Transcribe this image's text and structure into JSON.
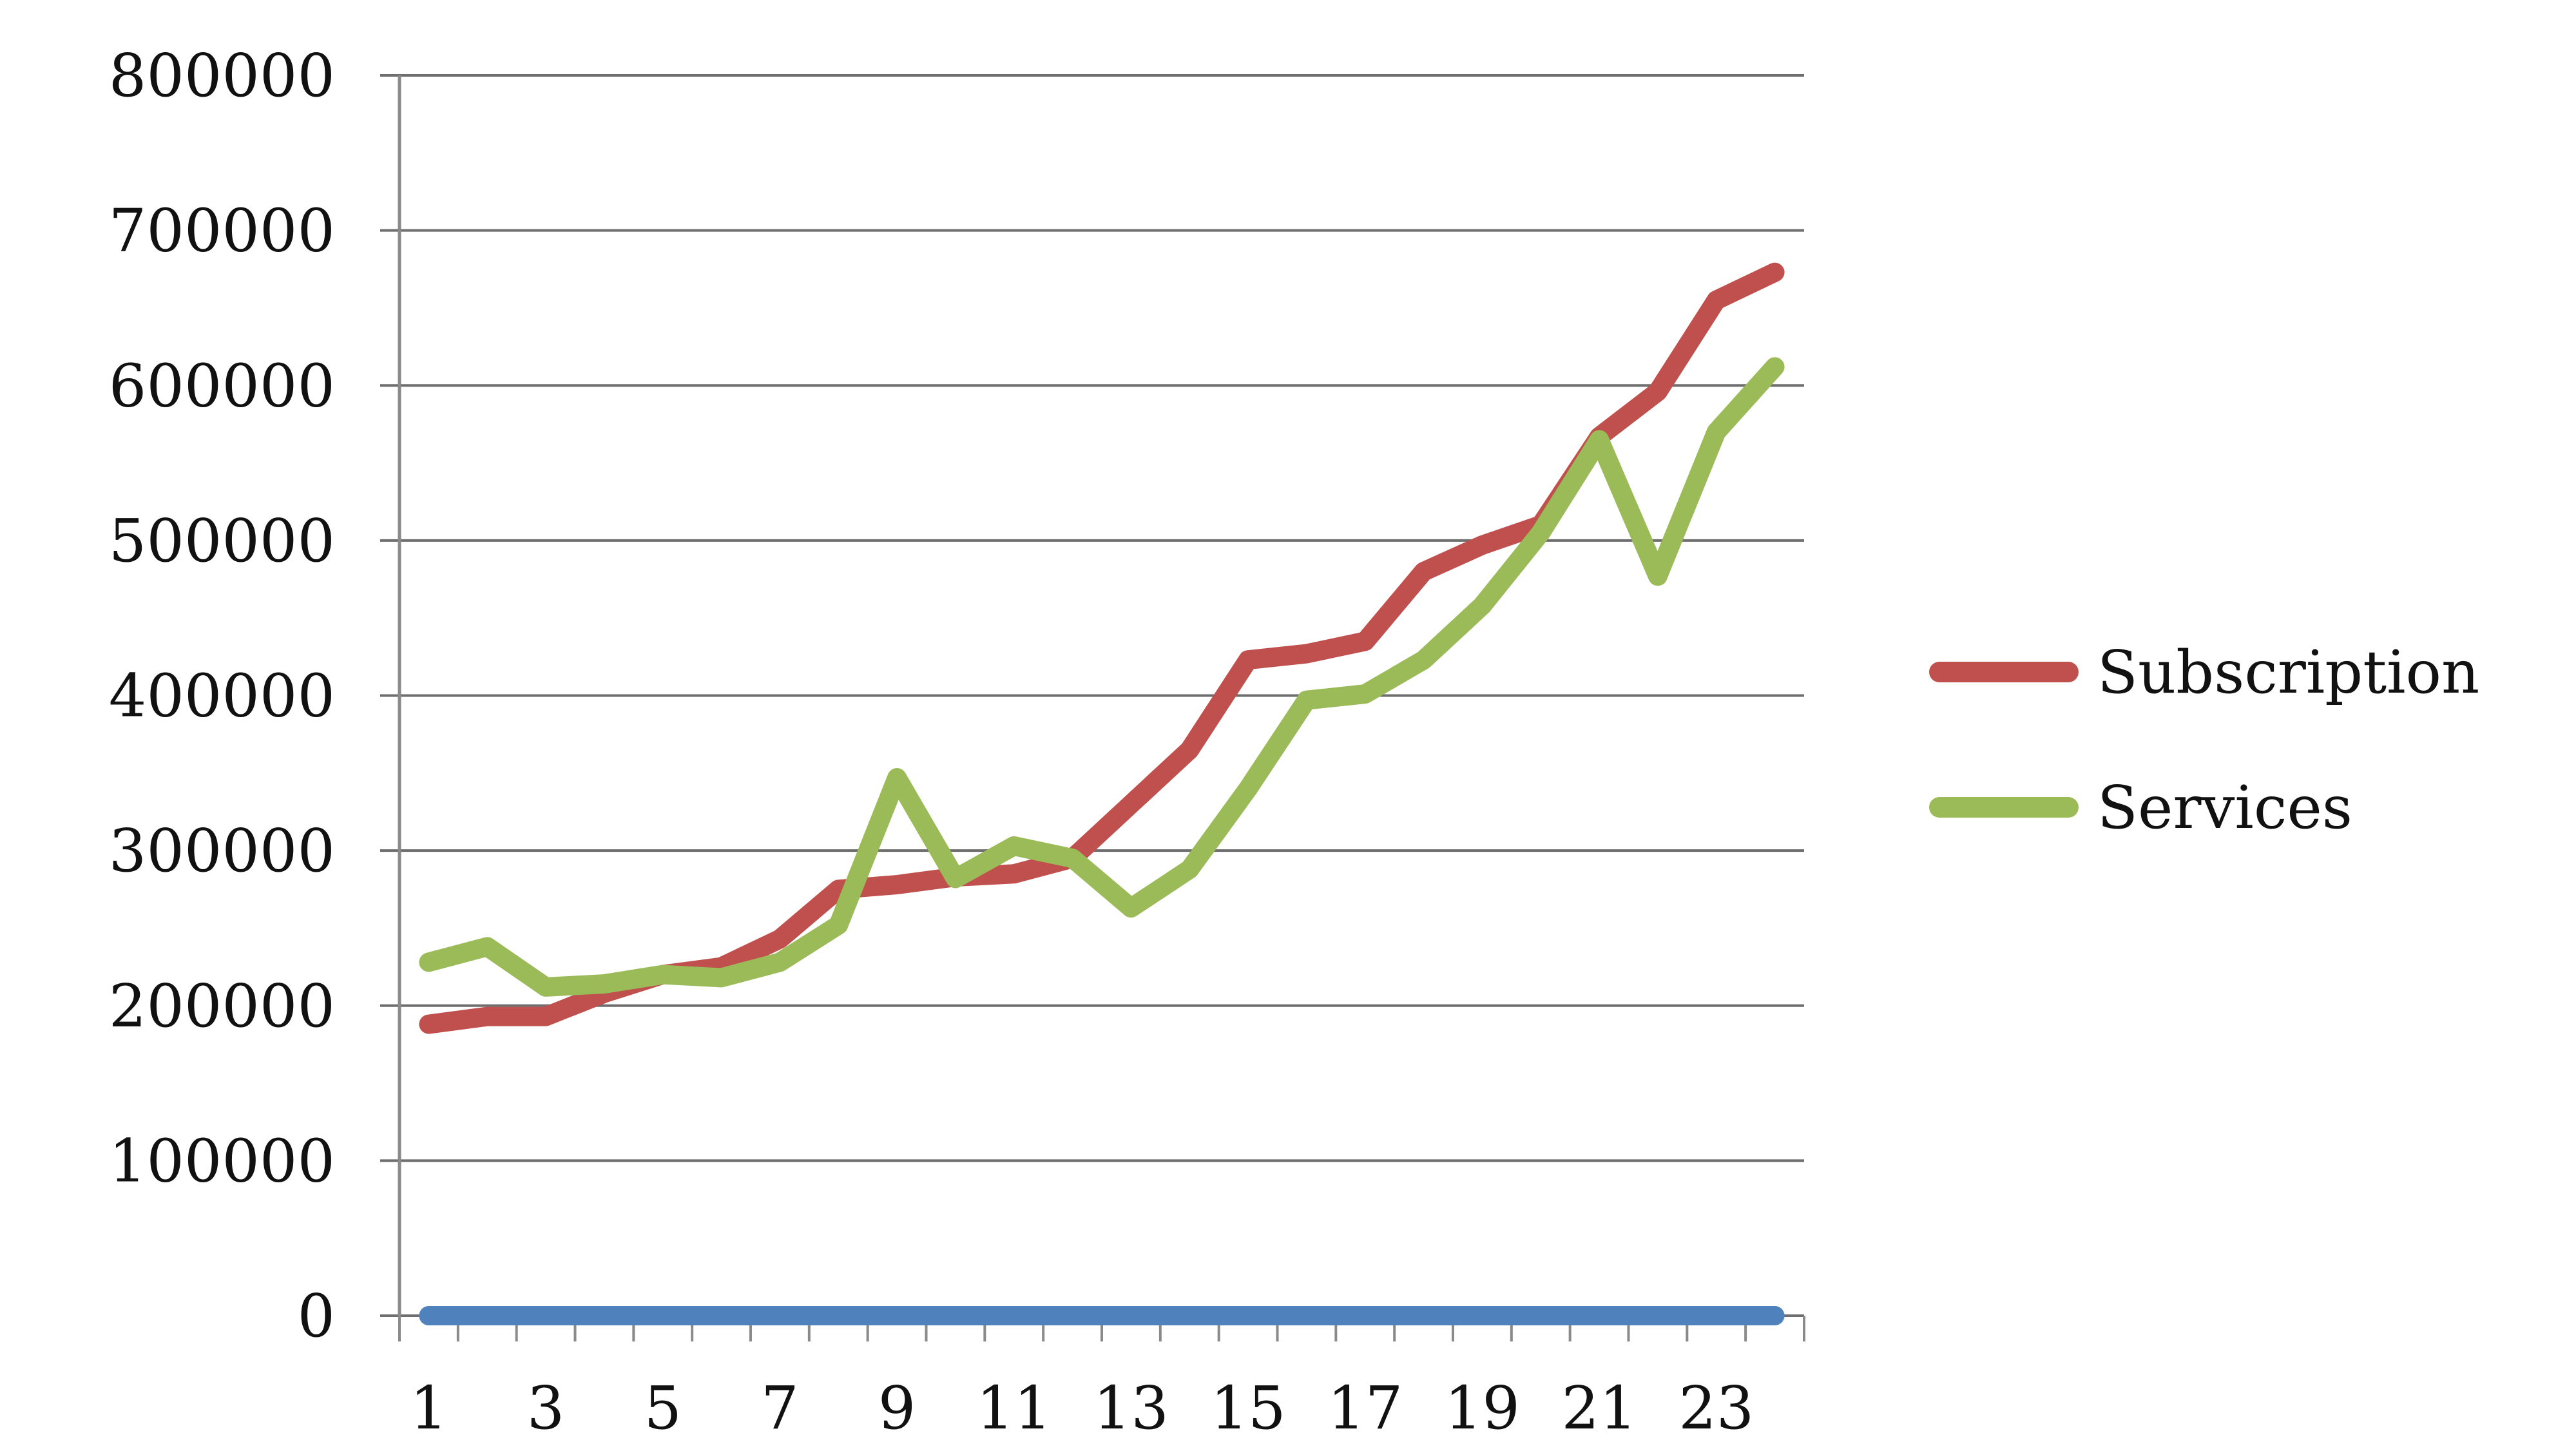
{
  "chart_data": {
    "type": "line",
    "title": "",
    "xlabel": "",
    "ylabel": "",
    "x": [
      1,
      2,
      3,
      4,
      5,
      6,
      7,
      8,
      9,
      10,
      11,
      12,
      13,
      14,
      15,
      16,
      17,
      18,
      19,
      20,
      21,
      22,
      23,
      24
    ],
    "x_tick_labels": [
      "1",
      "3",
      "5",
      "7",
      "9",
      "11",
      "13",
      "15",
      "17",
      "19",
      "21",
      "23"
    ],
    "y_tick_labels": [
      "0",
      "100000",
      "200000",
      "300000",
      "400000",
      "500000",
      "600000",
      "700000",
      "800000"
    ],
    "ylim": [
      0,
      800000
    ],
    "xlim": [
      0.5,
      24.5
    ],
    "grid": "horizontal",
    "legend_position": "right",
    "series": [
      {
        "name": "Subscription",
        "color": "#c0504d",
        "values": [
          188000,
          193000,
          193000,
          208000,
          220000,
          225000,
          243000,
          275000,
          278000,
          283000,
          285000,
          295000,
          330000,
          365000,
          423000,
          427000,
          435000,
          480000,
          497000,
          510000,
          567000,
          596000,
          655000,
          673000
        ]
      },
      {
        "name": "Services",
        "color": "#9bbb59",
        "values": [
          228000,
          238000,
          212000,
          214000,
          220000,
          218000,
          228000,
          252000,
          347000,
          282000,
          303000,
          295000,
          263000,
          288000,
          340000,
          397000,
          401000,
          423000,
          458000,
          505000,
          565000,
          477000,
          570000,
          612000
        ]
      },
      {
        "name": "",
        "color": "#4f81bd",
        "values": [
          0,
          0,
          0,
          0,
          0,
          0,
          0,
          0,
          0,
          0,
          0,
          0,
          0,
          0,
          0,
          0,
          0,
          0,
          0,
          0,
          0,
          0,
          0,
          0
        ]
      }
    ]
  }
}
